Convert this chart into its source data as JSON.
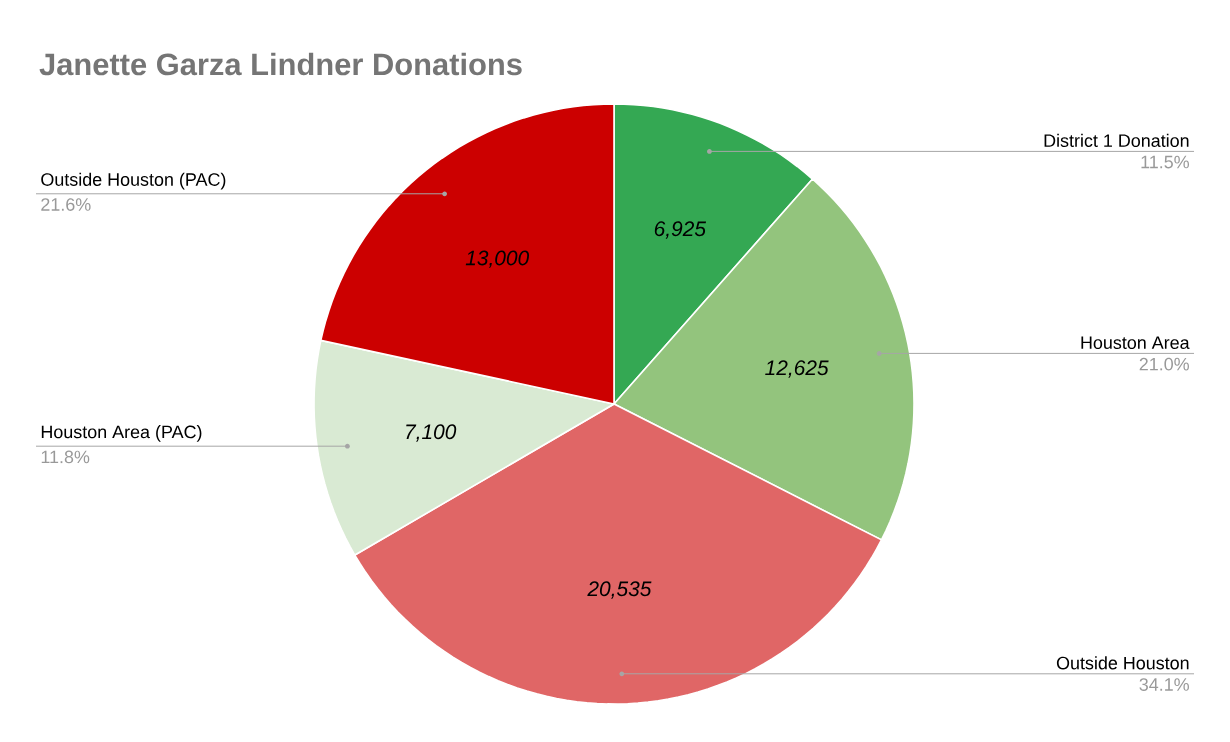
{
  "chart_data": {
    "type": "pie",
    "title": "Janette Garza Lindner Donations",
    "categories": [
      "District 1 Donation",
      "Houston Area",
      "Outside Houston",
      "Houston Area (PAC)",
      "Outside Houston (PAC)"
    ],
    "values": [
      6925,
      12625,
      20535,
      7100,
      13000
    ],
    "colors": [
      "#34a853",
      "#93c47d",
      "#e06666",
      "#d9ead3",
      "#cc0000"
    ],
    "value_labels": [
      "6,925",
      "12,625",
      "20,535",
      "7,100",
      "13,000"
    ],
    "annotations": [
      "11.5%",
      "21.0%",
      "34.1%",
      "11.8%",
      "21.6%"
    ]
  }
}
